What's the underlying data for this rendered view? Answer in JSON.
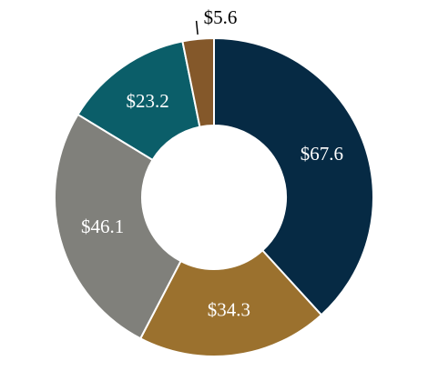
{
  "chart_data": {
    "type": "donut",
    "values": [
      67.6,
      34.3,
      46.1,
      23.2,
      5.6
    ],
    "value_labels": [
      "$67.6",
      "$34.3",
      "$46.1",
      "$23.2",
      "$5.6"
    ],
    "colors": [
      "#062a44",
      "#9b712e",
      "#80807b",
      "#0b5e69",
      "#84582a"
    ]
  }
}
